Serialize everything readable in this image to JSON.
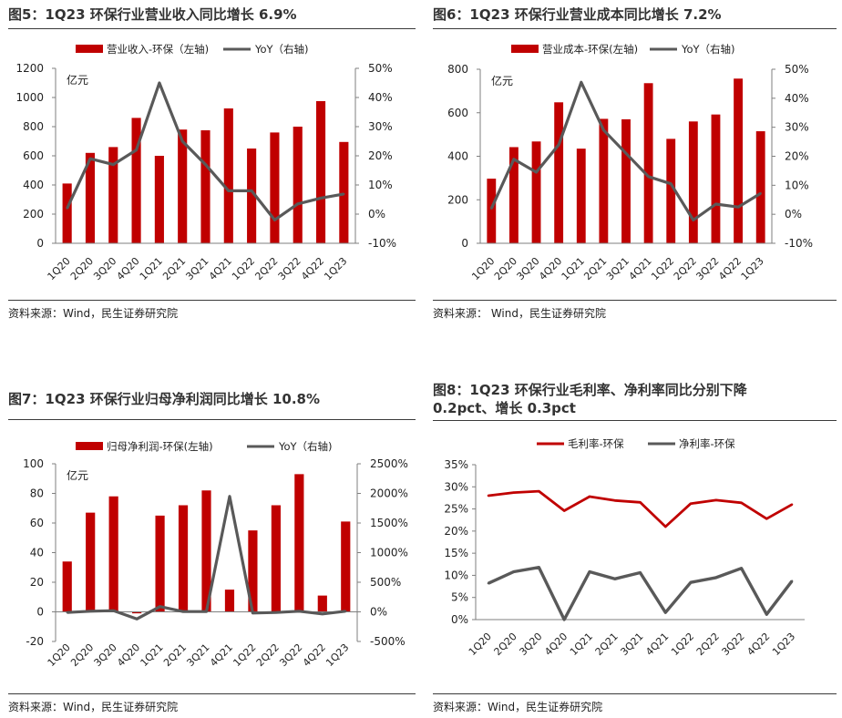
{
  "colors": {
    "bar": "#c00000",
    "line": "#595959",
    "axis": "#7f7f7f",
    "text": "#222222"
  },
  "figures": [
    {
      "title": "图5：1Q23 环保行业营业收入同比增长 6.9%",
      "source": "资料来源：Wind，民生证券研究院",
      "chart_data": {
        "type": "bar+line",
        "categories": [
          "1Q20",
          "2Q20",
          "3Q20",
          "4Q20",
          "1Q21",
          "2Q21",
          "3Q21",
          "4Q21",
          "1Q22",
          "2Q22",
          "3Q22",
          "4Q22",
          "1Q23"
        ],
        "bar_series": {
          "name": "营业收入-环保（左轴)",
          "values": [
            410,
            620,
            660,
            860,
            600,
            780,
            775,
            925,
            650,
            760,
            800,
            975,
            695
          ]
        },
        "line_series": {
          "name": "YoY（右轴)",
          "values": [
            2,
            19,
            17,
            22,
            45,
            25,
            17,
            8,
            8,
            -2,
            3.5,
            5.5,
            6.9
          ]
        },
        "unit": "亿元",
        "y_left": {
          "min": 0,
          "max": 1200,
          "ticks": [
            0,
            200,
            400,
            600,
            800,
            1000,
            1200
          ]
        },
        "y_right": {
          "min": -10,
          "max": 50,
          "ticks": [
            -10,
            0,
            10,
            20,
            30,
            40,
            50
          ],
          "suffix": "%"
        }
      }
    },
    {
      "title": "图6：1Q23 环保行业营业成本同比增长 7.2%",
      "source": "资料来源： Wind，民生证券研究院",
      "chart_data": {
        "type": "bar+line",
        "categories": [
          "1Q20",
          "2Q20",
          "3Q20",
          "4Q20",
          "1Q21",
          "2Q21",
          "3Q21",
          "4Q21",
          "1Q22",
          "2Q22",
          "3Q22",
          "4Q22",
          "1Q23"
        ],
        "bar_series": {
          "name": "营业成本-环保(左轴)",
          "values": [
            297,
            442,
            468,
            648,
            435,
            572,
            570,
            736,
            480,
            560,
            592,
            757,
            515
          ]
        },
        "line_series": {
          "name": "YoY（右轴)",
          "values": [
            2,
            19,
            14.5,
            24,
            45.5,
            29,
            21,
            13,
            10.5,
            -2,
            3.5,
            2.5,
            7.2
          ]
        },
        "unit": "亿元",
        "y_left": {
          "min": 0,
          "max": 800,
          "ticks": [
            0,
            200,
            400,
            600,
            800
          ]
        },
        "y_right": {
          "min": -10,
          "max": 50,
          "ticks": [
            -10,
            0,
            10,
            20,
            30,
            40,
            50
          ],
          "suffix": "%"
        }
      }
    },
    {
      "title": "图7：1Q23 环保行业归母净利润同比增长 10.8%",
      "source": "资料来源：Wind，民生证券研究院",
      "chart_data": {
        "type": "bar+line",
        "categories": [
          "1Q20",
          "2Q20",
          "3Q20",
          "4Q20",
          "1Q21",
          "2Q21",
          "3Q21",
          "4Q21",
          "1Q22",
          "2Q22",
          "3Q22",
          "4Q22",
          "1Q23"
        ],
        "bar_series": {
          "name": "归母净利润-环保(左轴)",
          "values": [
            34,
            67,
            78,
            -1,
            65,
            72,
            82,
            15,
            55,
            72,
            93,
            11,
            61
          ]
        },
        "line_series": {
          "name": "YoY（右轴)",
          "values": [
            -10,
            10,
            20,
            -120,
            90,
            5,
            5,
            1950,
            -20,
            -10,
            10,
            -35,
            10.8
          ]
        },
        "unit": "亿元",
        "y_left": {
          "min": -20,
          "max": 100,
          "ticks": [
            -20,
            0,
            20,
            40,
            60,
            80,
            100
          ]
        },
        "y_right": {
          "min": -500,
          "max": 2500,
          "ticks": [
            -500,
            0,
            500,
            1000,
            1500,
            2000,
            2500
          ],
          "suffix": "%"
        }
      }
    },
    {
      "title_lines": [
        "图8：1Q23  环保行业毛利率、净利率同比分别下降",
        "0.2pct、增长 0.3pct"
      ],
      "source": "资料来源：Wind，民生证券研究院",
      "chart_data": {
        "type": "line",
        "categories": [
          "1Q20",
          "2Q20",
          "3Q20",
          "4Q20",
          "1Q21",
          "2Q21",
          "3Q21",
          "4Q21",
          "1Q22",
          "2Q22",
          "3Q22",
          "4Q22",
          "1Q23"
        ],
        "series": [
          {
            "name": "毛利率-环保",
            "values": [
              28,
              28.7,
              29,
              24.6,
              27.8,
              26.9,
              26.5,
              21,
              26.2,
              27,
              26.4,
              22.8,
              26
            ]
          },
          {
            "name": "净利率-环保",
            "values": [
              8.2,
              10.8,
              11.8,
              0,
              10.8,
              9.2,
              10.6,
              1.6,
              8.4,
              9.5,
              11.6,
              1.2,
              8.7
            ]
          }
        ],
        "y": {
          "min": 0,
          "max": 35,
          "ticks": [
            0,
            5,
            10,
            15,
            20,
            25,
            30,
            35
          ],
          "suffix": "%"
        }
      }
    }
  ]
}
